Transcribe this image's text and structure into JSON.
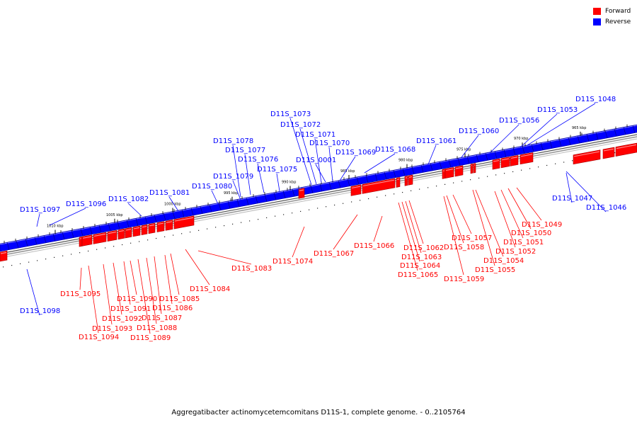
{
  "caption": "Aggregatibacter actinomycetemcomitans D11S-1, complete genome. - 0..2105764",
  "legend": [
    {
      "label": "Forward",
      "color": "#ff0000"
    },
    {
      "label": "Reverse",
      "color": "#0000ff"
    }
  ],
  "colors": {
    "forward": "#ff0000",
    "reverse": "#0000ff",
    "axis": "#7a7a7a"
  },
  "ticks": [
    "965 kbp",
    "970 kbp",
    "975 kbp",
    "980 kbp",
    "985 kbp",
    "990 kbp",
    "995 kbp",
    "1000 kbp",
    "1005 kbp",
    "1010 kbp"
  ],
  "reverse_labels": [
    "D11S_1048",
    "D11S_1053",
    "D11S_1056",
    "D11S_1060",
    "D11S_1061",
    "D11S_1068",
    "D11S_1069",
    "D11S_1070",
    "D11S_0001",
    "D11S_1071",
    "D11S_1072",
    "D11S_1073",
    "D11S_1075",
    "D11S_1076",
    "D11S_1077",
    "D11S_1078",
    "D11S_1079",
    "D11S_1080",
    "D11S_1081",
    "D11S_1082",
    "D11S_1096",
    "D11S_1097",
    "D11S_1047",
    "D11S_1046",
    "D11S_1098"
  ],
  "forward_labels": [
    "D11S_1049",
    "D11S_1050",
    "D11S_1051",
    "D11S_1052",
    "D11S_1054",
    "D11S_1055",
    "D11S_1057",
    "D11S_1058",
    "D11S_1059",
    "D11S_1062",
    "D11S_1063",
    "D11S_1064",
    "D11S_1065",
    "D11S_1066",
    "D11S_1067",
    "D11S_1074",
    "D11S_1083",
    "D11S_1084",
    "D11S_1085",
    "D11S_1086",
    "D11S_1087",
    "D11S_1088",
    "D11S_1089",
    "D11S_1090",
    "D11S_1091",
    "D11S_1092",
    "D11S_1093",
    "D11S_1094",
    "D11S_1095"
  ]
}
